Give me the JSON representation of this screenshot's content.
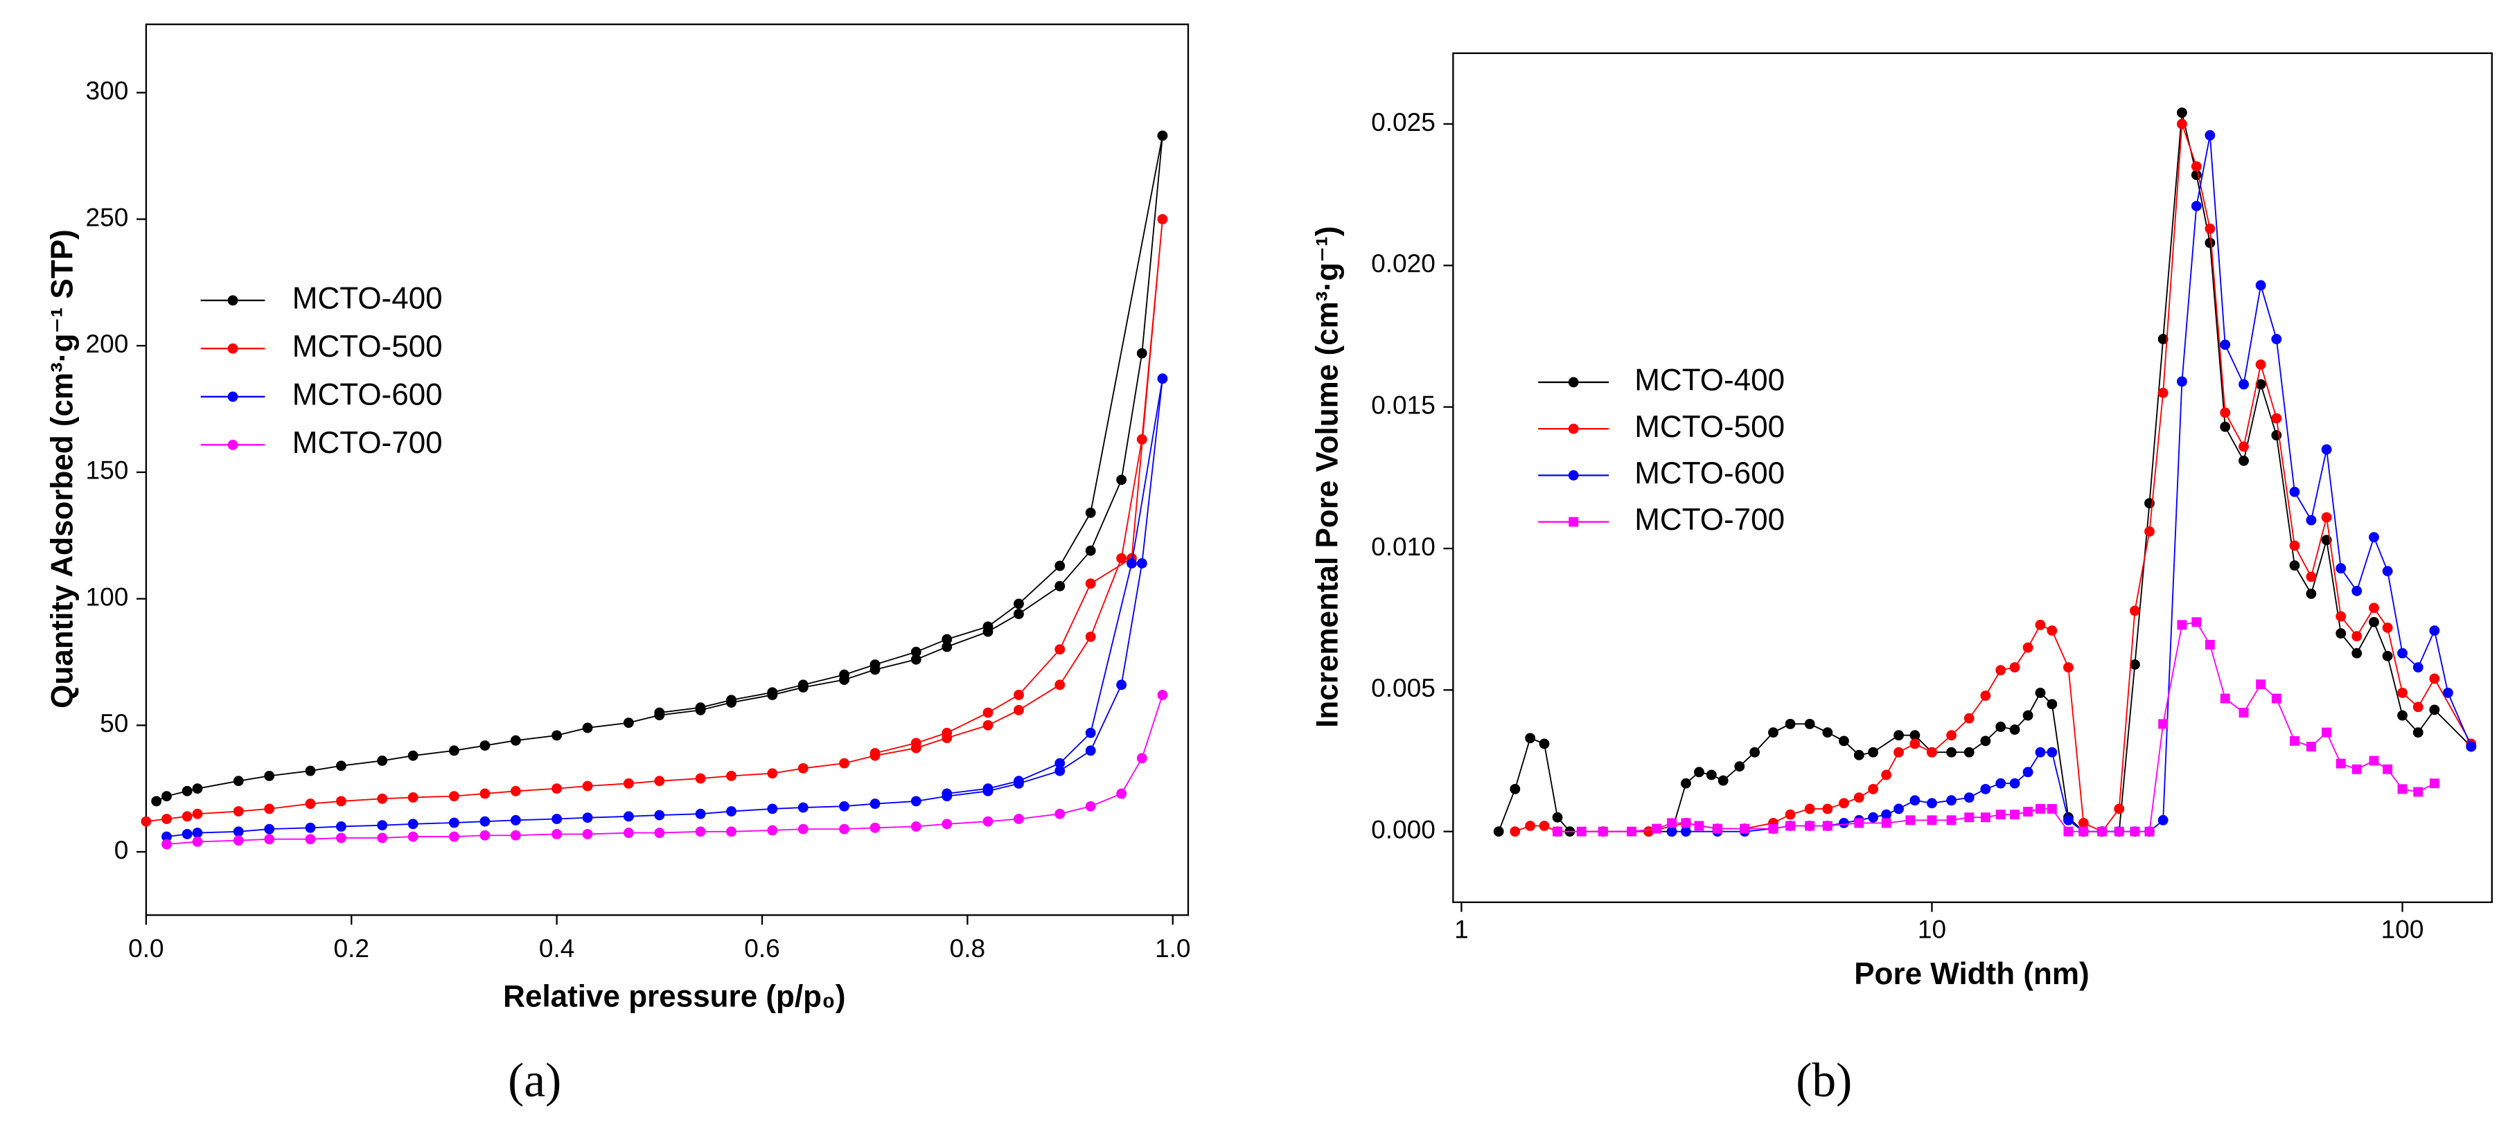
{
  "chart_data": [
    {
      "type": "line",
      "panel_label": "(a)",
      "x_label": "Relative pressure (p/p₀)",
      "y_label": "Quantity Adsorbed (cm³·g⁻¹ STP)",
      "xlim": [
        0,
        1.015
      ],
      "ylim": [
        -25,
        327
      ],
      "xticks": [
        {
          "value": 0,
          "label": "0.0"
        },
        {
          "value": 0.2,
          "label": "0.2"
        },
        {
          "value": 0.4,
          "label": "0.4"
        },
        {
          "value": 0.6,
          "label": "0.6"
        },
        {
          "value": 0.8,
          "label": "0.8"
        },
        {
          "value": 1,
          "label": "1.0"
        }
      ],
      "yticks": [
        0,
        50,
        100,
        150,
        200,
        250,
        300
      ],
      "series": [
        {
          "name": "MCTO-400",
          "color": "#000000",
          "marker": "circle",
          "x": [
            0.01,
            0.02,
            0.04,
            0.05,
            0.09,
            0.12,
            0.16,
            0.19,
            0.23,
            0.26,
            0.3,
            0.33,
            0.36,
            0.4,
            0.43,
            0.47,
            0.5,
            0.54,
            0.57,
            0.61,
            0.64,
            0.68,
            0.71,
            0.75,
            0.78,
            0.82,
            0.85,
            0.89,
            0.92,
            0.95,
            0.97,
            0.99,
            0.92,
            0.89,
            0.85,
            0.82,
            0.78,
            0.75,
            0.71,
            0.68,
            0.64,
            0.61,
            0.57,
            0.54,
            0.5
          ],
          "values": [
            20,
            22,
            24,
            25,
            28,
            30,
            32,
            34,
            36,
            38,
            40,
            42,
            44,
            46,
            49,
            51,
            54,
            56,
            59,
            62,
            65,
            68,
            72,
            76,
            81,
            87,
            94,
            105,
            119,
            147,
            197,
            283,
            134,
            113,
            98,
            89,
            84,
            79,
            74,
            70,
            66,
            63,
            60,
            57,
            55
          ]
        },
        {
          "name": "MCTO-500",
          "color": "#ff0000",
          "marker": "circle",
          "x": [
            0.0,
            0.02,
            0.04,
            0.05,
            0.09,
            0.12,
            0.16,
            0.19,
            0.23,
            0.26,
            0.3,
            0.33,
            0.36,
            0.4,
            0.43,
            0.47,
            0.5,
            0.54,
            0.57,
            0.61,
            0.64,
            0.68,
            0.71,
            0.75,
            0.78,
            0.82,
            0.85,
            0.89,
            0.92,
            0.95,
            0.97,
            0.99,
            0.96,
            0.92,
            0.89,
            0.85,
            0.82,
            0.78,
            0.75,
            0.71
          ],
          "values": [
            12,
            13,
            14,
            15,
            16,
            17,
            19,
            20,
            21,
            21.5,
            22,
            23,
            24,
            25,
            26,
            27,
            28,
            29,
            30,
            31,
            33,
            35,
            38,
            41,
            45,
            50,
            56,
            66,
            85,
            116,
            163,
            250,
            116,
            106,
            80,
            62,
            55,
            47,
            43,
            39
          ]
        },
        {
          "name": "MCTO-600",
          "color": "#0000ff",
          "marker": "circle",
          "x": [
            0.02,
            0.04,
            0.05,
            0.09,
            0.12,
            0.16,
            0.19,
            0.23,
            0.26,
            0.3,
            0.33,
            0.36,
            0.4,
            0.43,
            0.47,
            0.5,
            0.54,
            0.57,
            0.61,
            0.64,
            0.68,
            0.71,
            0.75,
            0.78,
            0.82,
            0.85,
            0.89,
            0.92,
            0.95,
            0.97,
            0.99,
            0.96,
            0.92,
            0.89,
            0.85,
            0.82,
            0.78
          ],
          "values": [
            6,
            7,
            7.5,
            8,
            9,
            9.5,
            10,
            10.5,
            11,
            11.5,
            12,
            12.5,
            13,
            13.5,
            14,
            14.5,
            15,
            16,
            17,
            17.5,
            18,
            19,
            20,
            22,
            24,
            27,
            32,
            40,
            66,
            114,
            187,
            114,
            47,
            35,
            28,
            25,
            23
          ]
        },
        {
          "name": "MCTO-700",
          "color": "#ff00ff",
          "marker": "circle",
          "x": [
            0.02,
            0.05,
            0.09,
            0.12,
            0.16,
            0.19,
            0.23,
            0.26,
            0.3,
            0.33,
            0.36,
            0.4,
            0.43,
            0.47,
            0.5,
            0.54,
            0.57,
            0.61,
            0.64,
            0.68,
            0.71,
            0.75,
            0.78,
            0.82,
            0.85,
            0.89,
            0.92,
            0.95,
            0.97,
            0.99
          ],
          "values": [
            3,
            4,
            4.5,
            5,
            5,
            5.5,
            5.5,
            6,
            6,
            6.5,
            6.5,
            7,
            7,
            7.5,
            7.5,
            8,
            8,
            8.5,
            9,
            9,
            9.5,
            10,
            11,
            12,
            13,
            15,
            18,
            23,
            37,
            62
          ]
        }
      ]
    },
    {
      "type": "line",
      "panel_label": "(b)",
      "x_scale": "log",
      "x_label": "Pore Width (nm)",
      "y_label": "Incremental Pore Volume (cm³·g⁻¹)",
      "xlim": [
        0.96,
        155
      ],
      "ylim": [
        -0.0025,
        0.0275
      ],
      "xticks": [
        1,
        10,
        100
      ],
      "yticks": [
        {
          "value": 0,
          "label": "0.000"
        },
        {
          "value": 0.005,
          "label": "0.005"
        },
        {
          "value": 0.01,
          "label": "0.010"
        },
        {
          "value": 0.015,
          "label": "0.015"
        },
        {
          "value": 0.02,
          "label": "0.020"
        },
        {
          "value": 0.025,
          "label": "0.025"
        }
      ],
      "series": [
        {
          "name": "MCTO-400",
          "color": "#000000",
          "marker": "circle",
          "x": [
            1.2,
            1.3,
            1.4,
            1.5,
            1.6,
            1.7,
            2.0,
            2.5,
            2.8,
            3.0,
            3.2,
            3.4,
            3.6,
            3.9,
            4.2,
            4.6,
            5.0,
            5.5,
            6.0,
            6.5,
            7.0,
            7.5,
            8.5,
            9.2,
            10,
            11,
            12,
            13,
            14,
            15,
            16,
            17,
            18,
            19.5,
            21,
            23,
            25,
            27,
            29,
            31,
            34,
            36.5,
            39,
            42,
            46,
            50,
            54,
            59,
            64,
            69,
            74,
            80,
            87,
            93,
            100,
            108,
            117,
            140
          ],
          "values": [
            0,
            0.0015,
            0.0033,
            0.0031,
            0.0005,
            0,
            0,
            0,
            0,
            0.0017,
            0.0021,
            0.002,
            0.0018,
            0.0023,
            0.0028,
            0.0035,
            0.0038,
            0.0038,
            0.0035,
            0.0032,
            0.0027,
            0.0028,
            0.0034,
            0.0034,
            0.0028,
            0.0028,
            0.0028,
            0.0032,
            0.0037,
            0.0036,
            0.0041,
            0.0049,
            0.0045,
            0.0005,
            0,
            0,
            0,
            0.0059,
            0.0116,
            0.0174,
            0.0254,
            0.0232,
            0.0208,
            0.0143,
            0.0131,
            0.0158,
            0.014,
            0.0094,
            0.0084,
            0.0103,
            0.007,
            0.0063,
            0.0074,
            0.0062,
            0.0041,
            0.0035,
            0.0043,
            0.003
          ]
        },
        {
          "name": "MCTO-500",
          "color": "#ff0000",
          "marker": "circle",
          "x": [
            1.3,
            1.4,
            1.5,
            1.6,
            2,
            2.5,
            3,
            3.5,
            4,
            4.6,
            5,
            5.5,
            6,
            6.5,
            7,
            7.5,
            8,
            8.5,
            9.2,
            10,
            11,
            12,
            13,
            14,
            15,
            16,
            17,
            18,
            19.5,
            21,
            23,
            25,
            27,
            29,
            31,
            34,
            36.5,
            39,
            42,
            46,
            50,
            54,
            59,
            64,
            69,
            74,
            80,
            87,
            93,
            100,
            108,
            117,
            140
          ],
          "values": [
            0,
            0.0002,
            0.0002,
            0,
            0,
            0,
            0.0003,
            0.0001,
            0.0001,
            0.0003,
            0.0006,
            0.0008,
            0.0008,
            0.001,
            0.0012,
            0.0015,
            0.002,
            0.0028,
            0.0031,
            0.0028,
            0.0034,
            0.004,
            0.0048,
            0.0057,
            0.0058,
            0.0065,
            0.0073,
            0.0071,
            0.0058,
            0.0003,
            0,
            0.0008,
            0.0078,
            0.0106,
            0.0155,
            0.025,
            0.0235,
            0.0213,
            0.0148,
            0.0136,
            0.0165,
            0.0146,
            0.0101,
            0.009,
            0.0111,
            0.0076,
            0.0069,
            0.0079,
            0.0072,
            0.0049,
            0.0044,
            0.0054,
            0.0031
          ]
        },
        {
          "name": "MCTO-600",
          "color": "#0000ff",
          "marker": "circle",
          "x": [
            2.8,
            3.0,
            3.5,
            4,
            4.6,
            5,
            5.5,
            6,
            6.5,
            7,
            7.5,
            8,
            8.5,
            9.2,
            10,
            11,
            12,
            13,
            14,
            15,
            16,
            17,
            18,
            19.5,
            21,
            23,
            25,
            27,
            29,
            31,
            34,
            36.5,
            39,
            42,
            46,
            50,
            54,
            59,
            64,
            69,
            74,
            80,
            87,
            93,
            100,
            108,
            117,
            125,
            140
          ],
          "values": [
            0,
            0,
            0,
            0,
            0.0001,
            0.0002,
            0.0002,
            0.0002,
            0.0003,
            0.0004,
            0.0005,
            0.0006,
            0.0008,
            0.0011,
            0.001,
            0.0011,
            0.0012,
            0.0015,
            0.0017,
            0.0017,
            0.0021,
            0.0028,
            0.0028,
            0.0004,
            0,
            0,
            0,
            0,
            0,
            0.0004,
            0.0159,
            0.0221,
            0.0246,
            0.0172,
            0.0158,
            0.0193,
            0.0174,
            0.012,
            0.011,
            0.0135,
            0.0093,
            0.0085,
            0.0104,
            0.0092,
            0.0063,
            0.0058,
            0.0071,
            0.0049,
            0.003
          ]
        },
        {
          "name": "MCTO-700",
          "color": "#ff00ff",
          "marker": "square",
          "x": [
            1.6,
            1.8,
            2,
            2.3,
            2.6,
            2.8,
            3,
            3.2,
            3.5,
            4,
            4.6,
            5,
            5.5,
            6,
            7,
            8,
            9,
            10,
            11,
            12,
            13,
            14,
            15,
            16,
            17,
            18,
            19.5,
            21,
            23,
            25,
            27,
            29,
            31,
            34,
            36.5,
            39,
            42,
            46,
            50,
            54,
            59,
            64,
            69,
            74,
            80,
            87,
            93,
            100,
            108,
            117
          ],
          "values": [
            0,
            0,
            0,
            0,
            0.0001,
            0.0003,
            0.0003,
            0.0002,
            0.0001,
            0.0001,
            0.0001,
            0.0002,
            0.0002,
            0.0002,
            0.0003,
            0.0003,
            0.0004,
            0.0004,
            0.0004,
            0.0005,
            0.0005,
            0.0006,
            0.0006,
            0.0007,
            0.0008,
            0.0008,
            0,
            0,
            0,
            0,
            0,
            0,
            0.0038,
            0.0073,
            0.0074,
            0.0066,
            0.0047,
            0.0042,
            0.0052,
            0.0047,
            0.0032,
            0.003,
            0.0035,
            0.0024,
            0.0022,
            0.0025,
            0.0022,
            0.0015,
            0.0014,
            0.0017
          ]
        }
      ]
    }
  ]
}
